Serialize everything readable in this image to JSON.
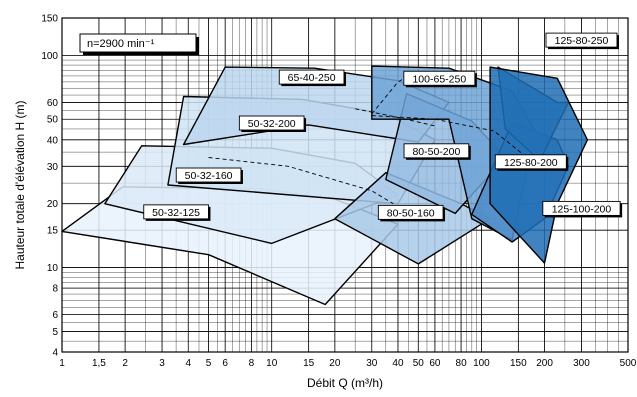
{
  "chart_data": {
    "type": "area",
    "xlabel": "Débit Q (m³/h)",
    "ylabel": "Hauteur totale d'élévation  H (m)",
    "xscale": "log",
    "yscale": "log",
    "xlim": [
      1,
      500
    ],
    "ylim": [
      4,
      150
    ],
    "grid": true,
    "x_ticks": [
      {
        "v": 1,
        "label": "1"
      },
      {
        "v": 1.5,
        "label": "1,5"
      },
      {
        "v": 2,
        "label": "2"
      },
      {
        "v": 3,
        "label": "3"
      },
      {
        "v": 4,
        "label": "4"
      },
      {
        "v": 5,
        "label": "5"
      },
      {
        "v": 6,
        "label": "6"
      },
      {
        "v": 8,
        "label": "8"
      },
      {
        "v": 10,
        "label": "10"
      },
      {
        "v": 15,
        "label": "15"
      },
      {
        "v": 20,
        "label": "20"
      },
      {
        "v": 30,
        "label": "30"
      },
      {
        "v": 40,
        "label": "40"
      },
      {
        "v": 50,
        "label": "50"
      },
      {
        "v": 60,
        "label": "60"
      },
      {
        "v": 80,
        "label": "80"
      },
      {
        "v": 100,
        "label": "100"
      },
      {
        "v": 150,
        "label": "150"
      },
      {
        "v": 200,
        "label": "200"
      },
      {
        "v": 300,
        "label": "300"
      },
      {
        "v": 500,
        "label": "500"
      }
    ],
    "y_ticks": [
      {
        "v": 4,
        "label": "4"
      },
      {
        "v": 5,
        "label": "5"
      },
      {
        "v": 6,
        "label": "6"
      },
      {
        "v": 8,
        "label": "8"
      },
      {
        "v": 10,
        "label": "10"
      },
      {
        "v": 15,
        "label": "15"
      },
      {
        "v": 20,
        "label": "20"
      },
      {
        "v": 30,
        "label": "30"
      },
      {
        "v": 40,
        "label": "40"
      },
      {
        "v": 50,
        "label": "50"
      },
      {
        "v": 60,
        "label": "60"
      },
      {
        "v": 100,
        "label": "100"
      },
      {
        "v": 150,
        "label": "150"
      }
    ],
    "annotation": "n=2900 min⁻¹",
    "regions": [
      {
        "name": "50-32-125",
        "color": "#e8f2fb",
        "points": [
          [
            1,
            14.8
          ],
          [
            1.95,
            24
          ],
          [
            9,
            23.5
          ],
          [
            20,
            21
          ],
          [
            40,
            16
          ],
          [
            18,
            6.7
          ],
          [
            5,
            11.5
          ],
          [
            1,
            14.8
          ]
        ],
        "label_pos": [
          3.5,
          18.3
        ]
      },
      {
        "name": "50-32-160",
        "color": "#dbeaf7",
        "points": [
          [
            1.6,
            20
          ],
          [
            2.4,
            37.5
          ],
          [
            10,
            36.5
          ],
          [
            25,
            31
          ],
          [
            40,
            22
          ],
          [
            10,
            13
          ],
          [
            1.6,
            20
          ]
        ],
        "label_pos": [
          5,
          27.3
        ]
      },
      {
        "name": "50-32-200",
        "color": "#cfe3f4",
        "points": [
          [
            3.2,
            24.5
          ],
          [
            3.8,
            64
          ],
          [
            14,
            62
          ],
          [
            35,
            53
          ],
          [
            60,
            40
          ],
          [
            40,
            20
          ],
          [
            3.2,
            24.5
          ]
        ],
        "label_pos": [
          10,
          48
        ]
      },
      {
        "name": "65-40-250",
        "color": "#bcd6ee",
        "points": [
          [
            3.8,
            38
          ],
          [
            6,
            88
          ],
          [
            16,
            87
          ],
          [
            40,
            76
          ],
          [
            70,
            60
          ],
          [
            50,
            39
          ],
          [
            15,
            47
          ],
          [
            3.8,
            38
          ]
        ],
        "label_pos": [
          15.5,
          79
        ]
      },
      {
        "name": "80-50-160",
        "color": "#a9c9e8",
        "points": [
          [
            20,
            17
          ],
          [
            35,
            28
          ],
          [
            80,
            20
          ],
          [
            110,
            17
          ],
          [
            50,
            10.4
          ],
          [
            20,
            17
          ]
        ],
        "label_pos": [
          46,
          18.2
        ]
      },
      {
        "name": "80-50-200",
        "color": "#94bbe2",
        "points": [
          [
            35,
            26
          ],
          [
            44,
            66
          ],
          [
            90,
            49
          ],
          [
            130,
            33
          ],
          [
            75,
            18
          ],
          [
            35,
            26
          ]
        ],
        "label_pos": [
          61,
          35.5
        ]
      },
      {
        "name": "100-65-250",
        "color": "#6ea3d6",
        "points": [
          [
            30,
            50
          ],
          [
            30,
            89
          ],
          [
            70,
            87
          ],
          [
            140,
            68
          ],
          [
            180,
            44
          ],
          [
            140,
            13.5
          ],
          [
            90,
            17
          ],
          [
            70,
            50
          ],
          [
            30,
            50
          ]
        ],
        "label_pos": [
          63,
          78
        ]
      },
      {
        "name": "125-80-200",
        "color": "#4d8cc9",
        "points": [
          [
            90,
            17.8
          ],
          [
            140,
            48
          ],
          [
            230,
            40
          ],
          [
            260,
            30
          ],
          [
            200,
            17
          ],
          [
            140,
            13.2
          ],
          [
            90,
            17.8
          ]
        ],
        "label_pos": [
          172,
          31.5
        ]
      },
      {
        "name": "125-80-250",
        "color": "#3a7fc0",
        "points": [
          [
            120,
            88
          ],
          [
            230,
            60
          ],
          [
            260,
            60
          ],
          [
            190,
            32
          ],
          [
            130,
            45
          ],
          [
            120,
            88
          ]
        ],
        "label_pos": [
          300,
          118
        ]
      },
      {
        "name": "125-100-200",
        "color": "#1f6db4",
        "points": [
          [
            110,
            88
          ],
          [
            230,
            78
          ],
          [
            320,
            40
          ],
          [
            230,
            20
          ],
          [
            200,
            10.5
          ],
          [
            110,
            20
          ],
          [
            110,
            88
          ]
        ],
        "label_pos": [
          300,
          19
        ]
      }
    ],
    "dashed_lines": [
      {
        "points": [
          [
            5,
            33
          ],
          [
            12,
            30
          ],
          [
            30,
            23
          ],
          [
            38,
            20
          ]
        ]
      },
      {
        "points": [
          [
            25,
            56
          ],
          [
            40,
            51
          ],
          [
            60,
            46.5
          ]
        ]
      },
      {
        "points": [
          [
            30,
            52
          ],
          [
            60,
            50
          ],
          [
            115,
            44
          ],
          [
            165,
            33
          ]
        ]
      },
      {
        "points": [
          [
            30,
            53
          ],
          [
            40,
            75
          ],
          [
            45,
            80
          ]
        ]
      }
    ]
  }
}
